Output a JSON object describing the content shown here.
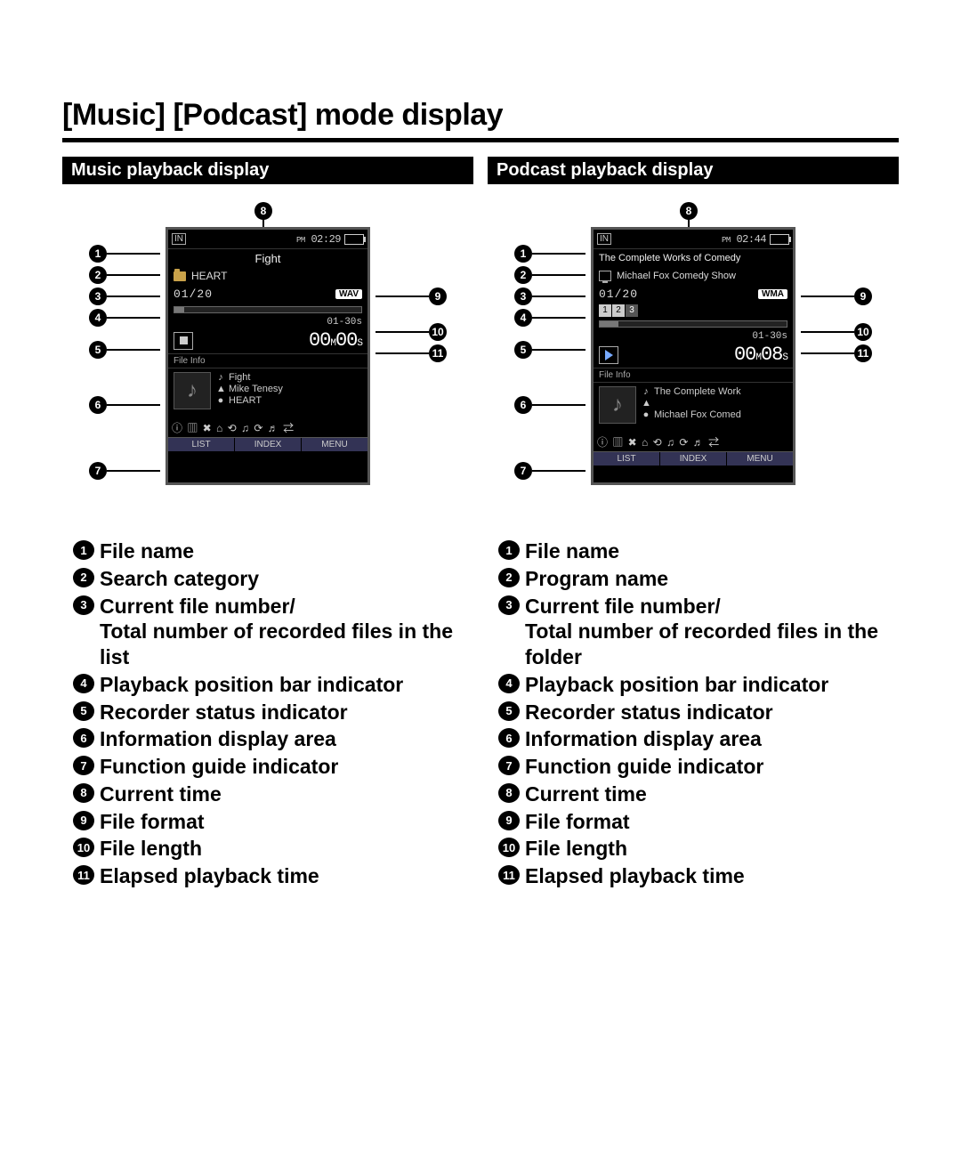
{
  "title": "[Music] [Podcast] mode display",
  "left": {
    "subhead": "Music playback display",
    "screen": {
      "in": "IN",
      "clock_pm": "PM",
      "clock": "02:29",
      "filename": "Fight",
      "category": "HEART",
      "counter": "01/20",
      "format": "WAV",
      "file_length": "01-30s",
      "elapsed_m": "00",
      "elapsed_s": "00",
      "fileinfo_label": "File Info",
      "info_title": "Fight",
      "info_artist": "Mike Tenesy",
      "info_album": "HEART",
      "fn_list": "LIST",
      "fn_index": "INDEX",
      "fn_menu": "MENU",
      "progress_pct": 5,
      "status": "stop"
    },
    "legend": [
      "File name",
      "Search category",
      "Current file number/\nTotal number of recorded files in the list",
      "Playback position bar indicator",
      "Recorder status indicator",
      "Information display area",
      "Function guide indicator",
      "Current time",
      "File format",
      "File length",
      "Elapsed playback time"
    ]
  },
  "right": {
    "subhead": "Podcast playback display",
    "screen": {
      "in": "IN",
      "clock_pm": "PM",
      "clock": "02:44",
      "filename": "The Complete Works of Comedy",
      "category": "Michael Fox Comedy Show",
      "counter": "01/20",
      "format": "WMA",
      "file_length": "01-30s",
      "elapsed_m": "00",
      "elapsed_s": "08",
      "fileinfo_label": "File Info",
      "info_title": "The Complete Work",
      "info_artist": "",
      "info_album": "Michael Fox Comed",
      "fn_list": "LIST",
      "fn_index": "INDEX",
      "fn_menu": "MENU",
      "progress_pct": 10,
      "status": "play"
    },
    "legend": [
      "File name",
      "Program name",
      "Current file number/\nTotal number of recorded files in the folder",
      "Playback position bar indicator",
      "Recorder status indicator",
      "Information display area",
      "Function guide indicator",
      "Current time",
      "File format",
      "File length",
      "Elapsed playback time"
    ]
  },
  "callout_glyphs": [
    "1",
    "2",
    "3",
    "4",
    "5",
    "6",
    "7",
    "8",
    "9",
    "10",
    "11"
  ]
}
